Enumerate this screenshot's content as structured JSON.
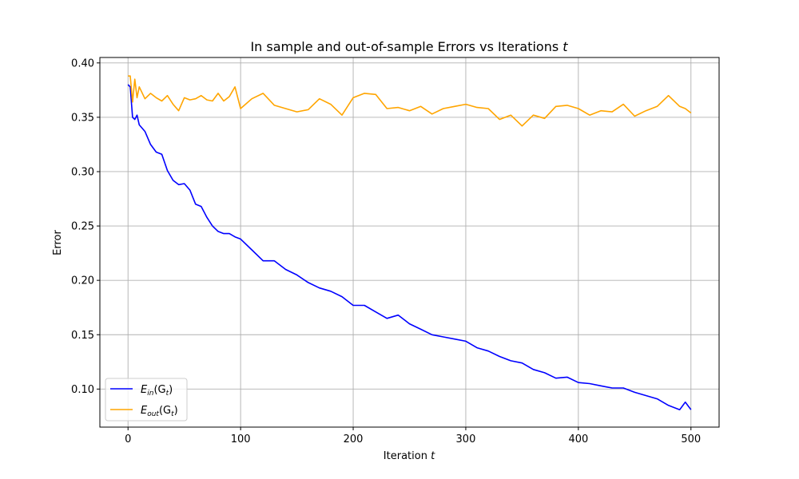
{
  "chart_data": {
    "type": "line",
    "title_prefix": "In sample and out-of-sample Errors vs Iterations ",
    "title_var": "t",
    "xlabel_prefix": "Iteration ",
    "xlabel_var": "t",
    "ylabel": "Error",
    "xlim": [
      -25,
      525
    ],
    "ylim": [
      0.065,
      0.405
    ],
    "xticks": [
      0,
      100,
      200,
      300,
      400,
      500
    ],
    "xtick_labels": [
      "0",
      "100",
      "200",
      "300",
      "400",
      "500"
    ],
    "yticks": [
      0.1,
      0.15,
      0.2,
      0.25,
      0.3,
      0.35,
      0.4
    ],
    "ytick_labels": [
      "0.10",
      "0.15",
      "0.20",
      "0.25",
      "0.30",
      "0.35",
      "0.40"
    ],
    "grid": true,
    "legend_position": "lower-left",
    "series": [
      {
        "name_main": "E",
        "name_sub": "in",
        "name_arg": "(G",
        "name_arg_sub": "t",
        "name_close": ")",
        "color": "#0000ff",
        "x": [
          0,
          2,
          4,
          6,
          8,
          10,
          15,
          20,
          25,
          30,
          35,
          40,
          45,
          50,
          55,
          60,
          65,
          70,
          75,
          80,
          85,
          90,
          95,
          100,
          110,
          120,
          130,
          140,
          150,
          160,
          170,
          180,
          190,
          200,
          210,
          220,
          230,
          240,
          250,
          260,
          270,
          280,
          290,
          300,
          310,
          320,
          330,
          340,
          350,
          360,
          370,
          380,
          390,
          400,
          410,
          420,
          430,
          440,
          450,
          460,
          470,
          480,
          490,
          495,
          500
        ],
        "values": [
          0.38,
          0.378,
          0.35,
          0.348,
          0.352,
          0.343,
          0.337,
          0.325,
          0.318,
          0.316,
          0.301,
          0.292,
          0.288,
          0.289,
          0.283,
          0.27,
          0.268,
          0.258,
          0.25,
          0.245,
          0.243,
          0.243,
          0.24,
          0.238,
          0.228,
          0.218,
          0.218,
          0.21,
          0.205,
          0.198,
          0.193,
          0.19,
          0.185,
          0.177,
          0.177,
          0.171,
          0.165,
          0.168,
          0.16,
          0.155,
          0.15,
          0.148,
          0.146,
          0.144,
          0.138,
          0.135,
          0.13,
          0.126,
          0.124,
          0.118,
          0.115,
          0.11,
          0.111,
          0.106,
          0.105,
          0.103,
          0.101,
          0.101,
          0.097,
          0.094,
          0.091,
          0.085,
          0.081,
          0.088,
          0.081
        ]
      },
      {
        "name_main": "E",
        "name_sub": "out",
        "name_arg": "(G",
        "name_arg_sub": "t",
        "name_close": ")",
        "color": "#ffa500",
        "x": [
          0,
          2,
          4,
          6,
          8,
          10,
          15,
          20,
          25,
          30,
          35,
          40,
          45,
          50,
          55,
          60,
          65,
          70,
          75,
          80,
          85,
          90,
          95,
          100,
          110,
          120,
          130,
          140,
          150,
          160,
          170,
          180,
          190,
          200,
          210,
          220,
          230,
          240,
          250,
          260,
          270,
          280,
          290,
          300,
          310,
          320,
          330,
          340,
          350,
          360,
          370,
          380,
          390,
          400,
          410,
          420,
          430,
          440,
          450,
          460,
          470,
          480,
          490,
          495,
          500
        ],
        "values": [
          0.388,
          0.388,
          0.364,
          0.385,
          0.368,
          0.378,
          0.367,
          0.372,
          0.368,
          0.365,
          0.37,
          0.362,
          0.356,
          0.368,
          0.366,
          0.367,
          0.37,
          0.366,
          0.365,
          0.372,
          0.365,
          0.369,
          0.378,
          0.358,
          0.367,
          0.372,
          0.361,
          0.358,
          0.355,
          0.357,
          0.367,
          0.362,
          0.352,
          0.368,
          0.372,
          0.371,
          0.358,
          0.359,
          0.356,
          0.36,
          0.353,
          0.358,
          0.36,
          0.362,
          0.359,
          0.358,
          0.348,
          0.352,
          0.342,
          0.352,
          0.349,
          0.36,
          0.361,
          0.358,
          0.352,
          0.356,
          0.355,
          0.362,
          0.351,
          0.356,
          0.36,
          0.37,
          0.36,
          0.358,
          0.354
        ]
      }
    ]
  }
}
